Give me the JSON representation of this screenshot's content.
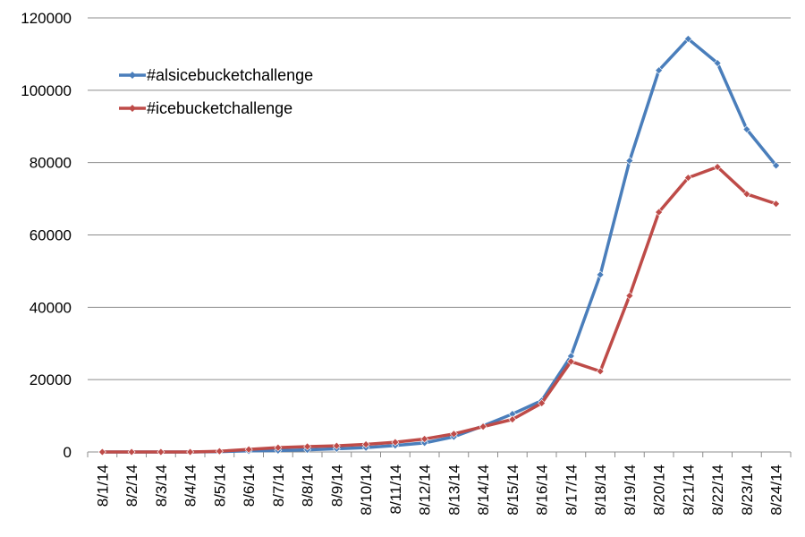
{
  "chart_data": {
    "type": "line",
    "title": "",
    "xlabel": "",
    "ylabel": "",
    "categories": [
      "8/1/14",
      "8/2/14",
      "8/3/14",
      "8/4/14",
      "8/5/14",
      "8/6/14",
      "8/7/14",
      "8/8/14",
      "8/9/14",
      "8/10/14",
      "8/11/14",
      "8/12/14",
      "8/13/14",
      "8/14/14",
      "8/15/14",
      "8/16/14",
      "8/17/14",
      "8/18/14",
      "8/19/14",
      "8/20/14",
      "8/21/14",
      "8/22/14",
      "8/23/14",
      "8/24/14"
    ],
    "ylim": [
      0,
      120000
    ],
    "yticks": [
      "0",
      "20000",
      "40000",
      "60000",
      "80000",
      "100000",
      "120000"
    ],
    "grid": true,
    "legend": "top-left",
    "series": [
      {
        "name": "#alsicebucketchallenge",
        "color": "#4a7ebb",
        "values": [
          0,
          0,
          0,
          0,
          100,
          300,
          400,
          600,
          900,
          1200,
          1800,
          2500,
          4200,
          7200,
          10500,
          14200,
          26500,
          49000,
          80500,
          105500,
          114200,
          107500,
          89200,
          79200
        ]
      },
      {
        "name": "#icebucketchallenge",
        "color": "#be4b48",
        "values": [
          0,
          0,
          0,
          0,
          200,
          700,
          1200,
          1500,
          1700,
          2100,
          2700,
          3600,
          5000,
          7000,
          9000,
          13500,
          25000,
          22300,
          43200,
          66300,
          75800,
          78800,
          71300,
          68600
        ]
      }
    ]
  }
}
